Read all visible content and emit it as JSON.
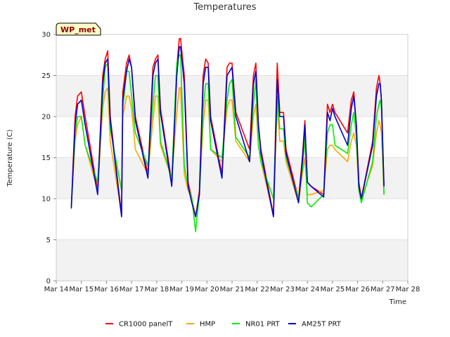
{
  "chart_data": {
    "type": "line",
    "title": "Temperatures",
    "xlabel": "Time",
    "ylabel": "Temperature (C)",
    "site_label": "WP_met",
    "ylim": [
      0,
      30
    ],
    "yticks": [
      0,
      5,
      10,
      15,
      20,
      25,
      30
    ],
    "xlim": [
      14,
      28
    ],
    "xticks": [
      {
        "value": 14,
        "label": "Mar 14"
      },
      {
        "value": 15,
        "label": "Mar 15"
      },
      {
        "value": 16,
        "label": "Mar 16"
      },
      {
        "value": 17,
        "label": "Mar 17"
      },
      {
        "value": 18,
        "label": "Mar 18"
      },
      {
        "value": 19,
        "label": "Mar 19"
      },
      {
        "value": 20,
        "label": "Mar 20"
      },
      {
        "value": 21,
        "label": "Mar 21"
      },
      {
        "value": 22,
        "label": "Mar 22"
      },
      {
        "value": 23,
        "label": "Mar 23"
      },
      {
        "value": 24,
        "label": "Mar 24"
      },
      {
        "value": 25,
        "label": "Mar 25"
      },
      {
        "value": 26,
        "label": "Mar 26"
      },
      {
        "value": 27,
        "label": "Mar 27"
      },
      {
        "value": 28,
        "label": "Mar 28"
      }
    ],
    "bands": [
      [
        0,
        5
      ],
      [
        10,
        15
      ],
      [
        20,
        25
      ]
    ],
    "legend_position": "bottom",
    "series": [
      {
        "name": "CR1000 panelT",
        "color": "#ff0000",
        "x": [
          14.6,
          14.75,
          14.85,
          15.0,
          15.15,
          15.65,
          15.85,
          15.95,
          16.05,
          16.15,
          16.6,
          16.65,
          16.8,
          16.9,
          17.0,
          17.15,
          17.65,
          17.85,
          17.95,
          18.05,
          18.15,
          18.6,
          18.8,
          18.9,
          18.95,
          19.1,
          19.25,
          19.4,
          19.55,
          19.7,
          19.85,
          19.95,
          20.05,
          20.15,
          20.6,
          20.8,
          20.9,
          21.0,
          21.15,
          21.7,
          21.85,
          21.95,
          22.05,
          22.15,
          22.65,
          22.8,
          22.9,
          23.05,
          23.15,
          23.65,
          23.8,
          23.9,
          24.0,
          24.15,
          24.65,
          24.8,
          24.9,
          25.0,
          25.1,
          25.6,
          25.75,
          25.85,
          25.95,
          26.05,
          26.15,
          26.6,
          26.75,
          26.85,
          26.9,
          26.95,
          27.05
        ],
        "y": [
          9,
          20,
          22.5,
          23,
          20,
          11,
          25,
          27,
          28,
          20,
          8,
          23,
          26.5,
          27.5,
          26,
          20,
          13,
          26,
          27,
          27.5,
          21,
          12,
          26,
          29.5,
          29.5,
          25,
          12,
          10,
          7.8,
          11,
          25,
          27,
          26.5,
          20,
          13,
          26,
          26.5,
          26.5,
          20.5,
          16,
          25,
          26.5,
          19,
          16,
          8,
          26.5,
          20.5,
          20.5,
          16,
          10,
          15,
          19.5,
          12,
          11.5,
          10.5,
          21.5,
          20.5,
          21.5,
          20.5,
          18,
          22,
          23,
          19,
          12,
          10,
          17,
          23.5,
          25,
          24,
          22,
          11.5
        ]
      },
      {
        "name": "HMP",
        "color": "#ffa500",
        "x": [
          14.6,
          14.75,
          14.85,
          15.0,
          15.15,
          15.65,
          15.85,
          15.95,
          16.05,
          16.15,
          16.6,
          16.65,
          16.8,
          16.9,
          17.0,
          17.15,
          17.65,
          17.85,
          17.95,
          18.05,
          18.15,
          18.6,
          18.8,
          18.9,
          18.95,
          19.1,
          19.25,
          19.4,
          19.55,
          19.7,
          19.85,
          19.95,
          20.05,
          20.15,
          20.6,
          20.8,
          20.9,
          21.0,
          21.15,
          21.7,
          21.85,
          21.95,
          22.05,
          22.15,
          22.65,
          22.8,
          22.9,
          23.05,
          23.15,
          23.65,
          23.8,
          23.9,
          24.0,
          24.15,
          24.65,
          24.8,
          24.9,
          25.0,
          25.1,
          25.6,
          25.75,
          25.85,
          25.95,
          26.05,
          26.15,
          26.6,
          26.75,
          26.85,
          26.9,
          26.95,
          27.05
        ],
        "y": [
          9,
          17,
          19,
          20,
          16.5,
          11,
          21,
          23,
          23.5,
          17,
          8,
          20,
          22.5,
          22.5,
          21,
          16,
          13,
          19.5,
          22.5,
          22.5,
          16.5,
          12.5,
          20.5,
          23.5,
          23.5,
          13,
          11,
          10,
          8,
          10.5,
          19,
          22,
          22,
          16,
          14.5,
          21,
          22,
          22,
          17,
          14.5,
          20,
          21.5,
          16.5,
          14.5,
          8,
          21.5,
          17,
          17,
          14.5,
          9.5,
          13,
          15,
          10.5,
          10.5,
          11,
          16,
          16.5,
          16.5,
          16,
          14.5,
          17,
          18,
          16.5,
          11,
          10,
          14,
          18,
          19.5,
          19,
          18,
          10.5
        ]
      },
      {
        "name": "NR01 PRT",
        "color": "#00ee00",
        "x": [
          14.6,
          14.75,
          14.85,
          15.0,
          15.15,
          15.65,
          15.85,
          15.95,
          16.05,
          16.15,
          16.6,
          16.65,
          16.8,
          16.9,
          17.0,
          17.15,
          17.65,
          17.85,
          17.95,
          18.05,
          18.15,
          18.6,
          18.8,
          18.9,
          18.95,
          19.1,
          19.25,
          19.4,
          19.55,
          19.7,
          19.85,
          19.95,
          20.05,
          20.15,
          20.6,
          20.8,
          20.9,
          21.0,
          21.15,
          21.7,
          21.85,
          21.95,
          22.05,
          22.15,
          22.65,
          22.8,
          22.9,
          23.05,
          23.15,
          23.65,
          23.8,
          23.9,
          24.0,
          24.15,
          24.65,
          24.8,
          24.9,
          25.0,
          25.1,
          25.6,
          25.75,
          25.85,
          25.95,
          26.05,
          26.15,
          26.6,
          26.75,
          26.85,
          26.9,
          26.95,
          27.05
        ],
        "y": [
          9,
          18,
          20,
          20,
          16.5,
          12,
          22,
          26,
          26.5,
          18.5,
          11,
          21,
          25.5,
          25.5,
          22.5,
          18,
          14,
          21.5,
          25,
          25,
          17,
          12.5,
          26.5,
          27.5,
          27.5,
          14,
          11.5,
          10,
          6,
          10.5,
          21,
          24,
          24,
          16,
          15,
          22,
          24,
          24.5,
          17.5,
          15,
          21.5,
          24.5,
          16.5,
          14.5,
          10,
          22.5,
          18.5,
          18.5,
          15,
          10,
          13.5,
          17.5,
          9.5,
          9,
          10.5,
          18,
          19,
          19,
          16.5,
          15.5,
          19,
          20.5,
          17.5,
          11,
          9.5,
          14.5,
          20,
          21.5,
          22,
          21,
          10.5
        ]
      },
      {
        "name": "AM25T PRT",
        "color": "#0000cc",
        "x": [
          14.6,
          14.75,
          14.85,
          15.0,
          15.15,
          15.65,
          15.85,
          15.95,
          16.05,
          16.15,
          16.6,
          16.65,
          16.8,
          16.9,
          17.0,
          17.15,
          17.65,
          17.85,
          17.95,
          18.05,
          18.15,
          18.6,
          18.8,
          18.9,
          18.95,
          19.1,
          19.25,
          19.4,
          19.55,
          19.7,
          19.85,
          19.95,
          20.05,
          20.15,
          20.6,
          20.8,
          20.9,
          21.0,
          21.15,
          21.7,
          21.85,
          21.95,
          22.05,
          22.15,
          22.65,
          22.8,
          22.9,
          23.05,
          23.15,
          23.65,
          23.8,
          23.9,
          24.0,
          24.15,
          24.65,
          24.8,
          24.9,
          25.0,
          25.1,
          25.6,
          25.75,
          25.85,
          25.95,
          26.05,
          26.15,
          26.6,
          26.75,
          26.85,
          26.9,
          26.95,
          27.05
        ],
        "y": [
          8.8,
          19,
          21.5,
          22,
          19,
          10.5,
          24,
          26.5,
          27,
          19.5,
          7.8,
          22,
          25.5,
          27,
          26,
          19.5,
          12.5,
          25,
          26.5,
          27,
          20.5,
          11.5,
          25,
          28.5,
          28.5,
          24,
          11.5,
          9.5,
          7.8,
          10.5,
          24,
          26,
          26,
          19.5,
          12.5,
          25,
          25.5,
          26,
          20,
          14.5,
          24,
          25.5,
          19,
          15.5,
          7.8,
          24.5,
          20,
          20,
          15.5,
          9.5,
          14.5,
          19,
          12,
          11.5,
          10.2,
          20.5,
          19.5,
          21,
          20,
          16.5,
          21,
          22.5,
          19,
          11.5,
          10,
          16.5,
          22.5,
          24,
          24,
          22,
          11.5
        ]
      }
    ]
  }
}
